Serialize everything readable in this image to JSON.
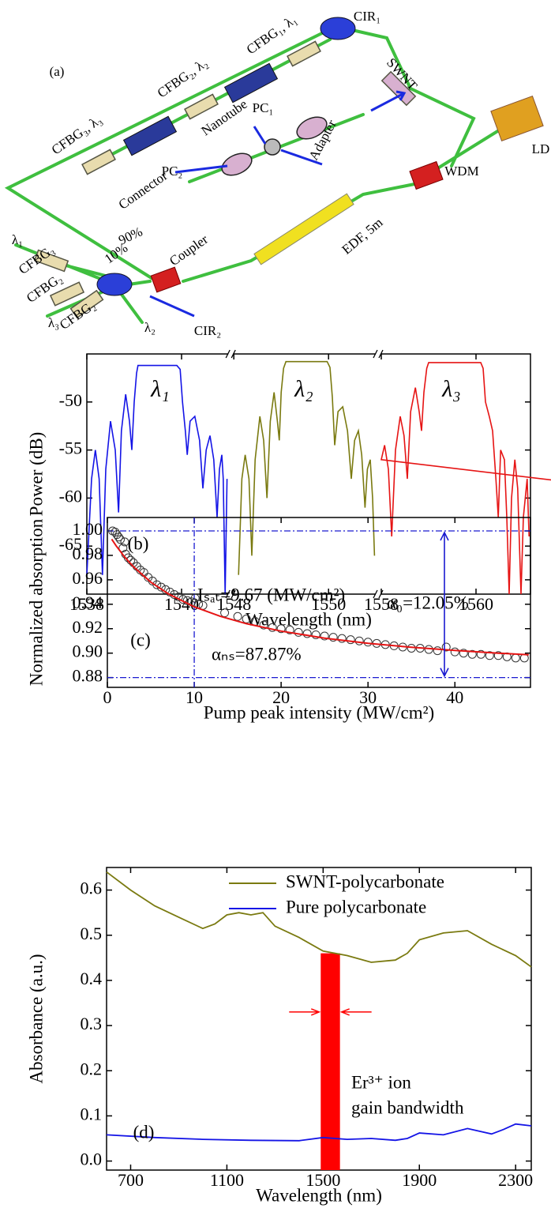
{
  "diagram": {
    "labels": [
      "(a)",
      "CIR₁",
      "SWNT",
      "CFBG₁, λ₁",
      "CFBG₂, λ₂",
      "PC₁",
      "PC₂",
      "CFBG₃, λ₃",
      "Nanotube",
      "Adapter",
      "Connector",
      "LD",
      "WDM",
      "EDF, 5m",
      "90%",
      "10%",
      "Coupler",
      "λ₁",
      "CFBG₃",
      "CFBG₂",
      "CFBG₂",
      "CIR₂",
      "λ₃",
      "λ₂"
    ]
  },
  "chart_data": [
    {
      "type": "line",
      "panel_label": "(b)",
      "x_label": "Wavelength (nm)",
      "y_label": "Power (dB)",
      "x_segments": [
        [
          1538,
          1540.97
        ],
        [
          1548,
          1550.98
        ],
        [
          1558,
          1561.15
        ]
      ],
      "xticks": [
        1538,
        1540,
        1548,
        1550,
        1558,
        1560
      ],
      "ylim": [
        -70,
        -45
      ],
      "yticks": [
        -65,
        -60,
        -55,
        -50
      ],
      "annotations": [
        "λ₁",
        "λ₂",
        "λ₃"
      ],
      "series": [
        {
          "color": "#1414e6",
          "x": [
            1538.0,
            1538.1,
            1538.18,
            1538.26,
            1538.33,
            1538.4,
            1538.5,
            1538.6,
            1538.67,
            1538.73,
            1538.82,
            1538.9,
            1538.95,
            1539.0,
            1539.05,
            1539.08,
            1539.9,
            1539.97,
            1540.02,
            1540.08,
            1540.12,
            1540.18,
            1540.28,
            1540.38,
            1540.45,
            1540.52,
            1540.6,
            1540.68,
            1540.75,
            1540.8,
            1540.85,
            1540.88,
            1540.92,
            1540.96
          ],
          "values": [
            -68,
            -58,
            -55,
            -58,
            -68,
            -57,
            -52,
            -55,
            -61.5,
            -53,
            -49.2,
            -52,
            -55,
            -50,
            -47,
            -46.2,
            -46.2,
            -46.6,
            -50,
            -53,
            -55.5,
            -52,
            -51.5,
            -54,
            -59,
            -55,
            -53.5,
            -56,
            -62,
            -57,
            -55.5,
            -58,
            -70,
            -58
          ]
        },
        {
          "color": "#7a7a10",
          "x": [
            1548.1,
            1548.17,
            1548.24,
            1548.32,
            1548.38,
            1548.45,
            1548.55,
            1548.63,
            1548.7,
            1548.77,
            1548.85,
            1548.92,
            1548.96,
            1549.0,
            1549.05,
            1549.1,
            1549.97,
            1550.03,
            1550.08,
            1550.13,
            1550.2,
            1550.3,
            1550.4,
            1550.48,
            1550.55,
            1550.63,
            1550.7,
            1550.77,
            1550.82,
            1550.88,
            1550.93,
            1550.97
          ],
          "values": [
            -68,
            -58,
            -55.5,
            -58,
            -66,
            -56,
            -51.5,
            -54,
            -60,
            -52,
            -49,
            -52,
            -54,
            -49,
            -46.5,
            -45.8,
            -45.8,
            -46.4,
            -49.5,
            -54.5,
            -51,
            -50.5,
            -53,
            -58,
            -54,
            -53,
            -55.5,
            -61,
            -57,
            -56,
            -60,
            -66
          ]
        },
        {
          "color": "#e61414",
          "x": [
            1557.92,
            1558.0,
            1558.07,
            1558.15,
            1558.22,
            1558.3,
            1558.4,
            1558.48,
            1558.55,
            1558.62,
            1558.72,
            1558.8,
            1558.85,
            1558.9,
            1558.96,
            1559.0,
            1560.1,
            1560.15,
            1560.2,
            1560.28,
            1560.35,
            1560.42,
            1560.47,
            1560.52,
            1560.6,
            1560.65,
            1560.7,
            1560.75,
            1560.82,
            1560.88,
            1560.95,
            1561.0,
            1561.08,
            1561.12
          ],
          "values": [
            -60,
            -56,
            -54.5,
            -57,
            -64,
            -55,
            -51.5,
            -53.5,
            -58,
            -51,
            -48.5,
            -51,
            -53,
            -49,
            -46.5,
            -45.9,
            -45.9,
            -46.5,
            -50,
            -51.5,
            -53,
            -58,
            -62,
            -55,
            -56,
            -62,
            -70,
            -60,
            -56,
            -59,
            -70,
            -62,
            -58,
            -64
          ]
        }
      ]
    },
    {
      "type": "scatter",
      "panel_label": "(c)",
      "x_label": "Pump peak intensity (MW/cm²)",
      "y_label": "Normalized absorption",
      "xlim": [
        0,
        48.7
      ],
      "xticks": [
        0,
        10,
        20,
        30,
        40
      ],
      "ylim": [
        0.872,
        1.011
      ],
      "yticks": [
        0.88,
        {
          "value": 0.9,
          "label": "0.90"
        },
        0.92,
        0.94,
        0.96,
        0.98,
        {
          "value": 1.0,
          "label": "1.00"
        }
      ],
      "ref_lines": {
        "x": [
          10
        ],
        "y": [
          1.0,
          0.88
        ],
        "color": "#1a1ad0"
      },
      "annotations": [
        "Iₛₐₜ=9.67 (MW/cm²)",
        "α₀=12.05%",
        "αₙₛ=87.87%"
      ],
      "series": [
        {
          "marker": "circle",
          "color": "#333333",
          "x": [
            0.6,
            0.9,
            1.1,
            1.3,
            1.5,
            1.8,
            2.0,
            2.1,
            2.4,
            2.7,
            3.0,
            3.4,
            3.8,
            4.2,
            4.7,
            5.2,
            5.7,
            6.2,
            6.7,
            7.2,
            7.7,
            8.2,
            8.7,
            9.2,
            9.7,
            10.1,
            10.5,
            11,
            13.5,
            15,
            16,
            17,
            18,
            19,
            20,
            21,
            22,
            23,
            24,
            25,
            26,
            27,
            28,
            29,
            30,
            31,
            32,
            33,
            34,
            35,
            36,
            37,
            38,
            39,
            40,
            41,
            42,
            43,
            44,
            45,
            46,
            47,
            48
          ],
          "values": [
            1.0,
            0.999,
            0.997,
            0.995,
            0.993,
            0.986,
            0.991,
            0.981,
            0.978,
            0.976,
            0.974,
            0.971,
            0.968,
            0.966,
            0.962,
            0.959,
            0.956,
            0.954,
            0.952,
            0.95,
            0.948,
            0.946,
            0.944,
            0.943,
            0.942,
            0.945,
            0.94,
            0.939,
            0.933,
            0.93,
            0.928,
            0.926,
            0.923,
            0.921,
            0.92,
            0.919,
            0.917,
            0.916,
            0.915,
            0.914,
            0.913,
            0.912,
            0.911,
            0.91,
            0.909,
            0.908,
            0.907,
            0.906,
            0.905,
            0.904,
            0.904,
            0.903,
            0.902,
            0.905,
            0.901,
            0.9,
            0.899,
            0.899,
            0.898,
            0.898,
            0.897,
            0.896,
            0.896
          ]
        },
        {
          "style": "line",
          "color": "#e61414",
          "x": [
            0.5,
            1,
            2,
            3,
            5,
            7,
            10,
            13,
            16,
            20,
            25,
            30,
            35,
            40,
            45,
            48.5
          ],
          "values": [
            0.9933,
            0.9879,
            0.9786,
            0.9707,
            0.9581,
            0.9486,
            0.9379,
            0.9301,
            0.9241,
            0.918,
            0.9123,
            0.9081,
            0.9048,
            0.9022,
            0.9,
            0.8987
          ]
        }
      ]
    },
    {
      "type": "line",
      "panel_label": "(d)",
      "x_label": "Wavelength (nm)",
      "y_label": "Absorbance (a.u.)",
      "xlim": [
        600,
        2365
      ],
      "xticks": [
        700,
        1100,
        1500,
        1900,
        2300
      ],
      "ylim": [
        -0.02,
        0.65
      ],
      "yticks": [
        {
          "value": 0,
          "label": "0.0"
        },
        0.1,
        0.2,
        0.3,
        0.4,
        0.5,
        0.6
      ],
      "legend": "top-right",
      "band": {
        "x": [
          1490,
          1570
        ],
        "top": 0.46,
        "color": "#ff0000"
      },
      "annotations": [
        "Er³⁺ ion",
        "gain bandwidth"
      ],
      "series": [
        {
          "name": "SWNT-polycarbonate",
          "color": "#7a7a10",
          "x": [
            600,
            700,
            800,
            900,
            1000,
            1050,
            1100,
            1150,
            1200,
            1250,
            1300,
            1400,
            1500,
            1600,
            1700,
            1800,
            1850,
            1900,
            2000,
            2100,
            2200,
            2300,
            2365
          ],
          "values": [
            0.64,
            0.6,
            0.565,
            0.54,
            0.515,
            0.525,
            0.545,
            0.55,
            0.545,
            0.55,
            0.52,
            0.495,
            0.465,
            0.455,
            0.44,
            0.445,
            0.46,
            0.49,
            0.505,
            0.51,
            0.48,
            0.455,
            0.43
          ]
        },
        {
          "name": "Pure polycarbonate",
          "color": "#1414e6",
          "x": [
            600,
            800,
            1000,
            1200,
            1400,
            1500,
            1600,
            1700,
            1800,
            1850,
            1900,
            2000,
            2100,
            2200,
            2250,
            2300,
            2365
          ],
          "values": [
            0.058,
            0.052,
            0.048,
            0.046,
            0.045,
            0.052,
            0.048,
            0.05,
            0.046,
            0.05,
            0.062,
            0.058,
            0.072,
            0.06,
            0.07,
            0.082,
            0.078
          ]
        }
      ]
    }
  ]
}
